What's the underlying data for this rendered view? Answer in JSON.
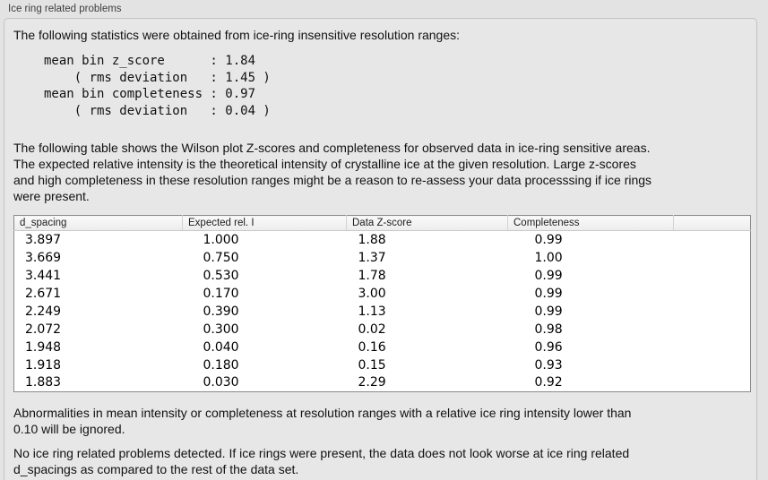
{
  "panel": {
    "title": "Ice ring related problems"
  },
  "intro": "The following statistics were obtained from ice-ring insensitive resolution ranges:",
  "stats": {
    "text": "mean bin z_score      : 1.84\n    ( rms deviation   : 1.45 )\nmean bin completeness : 0.97\n    ( rms deviation   : 0.04 )",
    "mean_bin_z_score": "1.84",
    "z_score_rms_deviation": "1.45",
    "mean_bin_completeness": "0.97",
    "completeness_rms_deviation": "0.04"
  },
  "table_intro": [
    "The following table shows the Wilson plot Z-scores and completeness for observed data in ice-ring sensitive areas.",
    "The expected relative intensity is the theoretical intensity of crystalline ice at the given resolution. Large z-scores",
    "and high completeness in these resolution ranges might be a reason to re-assess your data processsing if ice rings",
    "were present."
  ],
  "table": {
    "columns": [
      "d_spacing",
      "Expected rel. I",
      "Data Z-score",
      "Completeness"
    ],
    "rows": [
      [
        "3.897",
        "1.000",
        "1.88",
        "0.99"
      ],
      [
        "3.669",
        "0.750",
        "1.37",
        "1.00"
      ],
      [
        "3.441",
        "0.530",
        "1.78",
        "0.99"
      ],
      [
        "2.671",
        "0.170",
        "3.00",
        "0.99"
      ],
      [
        "2.249",
        "0.390",
        "1.13",
        "0.99"
      ],
      [
        "2.072",
        "0.300",
        "0.02",
        "0.98"
      ],
      [
        "1.948",
        "0.040",
        "0.16",
        "0.96"
      ],
      [
        "1.918",
        "0.180",
        "0.15",
        "0.93"
      ],
      [
        "1.883",
        "0.030",
        "2.29",
        "0.92"
      ]
    ]
  },
  "note": [
    "Abnormalities in mean intensity or completeness at resolution ranges with a relative ice ring intensity lower than",
    "0.10 will be ignored."
  ],
  "conclusion": [
    "No ice ring related problems detected. If ice rings were present, the data does not look worse at ice ring related",
    "d_spacings as compared to the rest of the data set."
  ]
}
